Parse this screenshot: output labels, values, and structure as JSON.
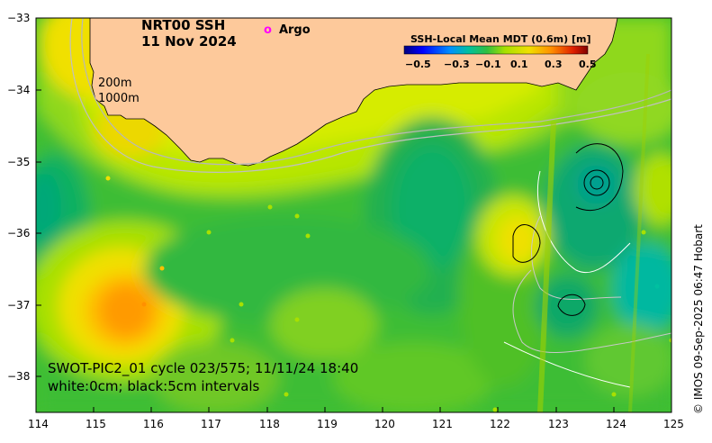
{
  "title": {
    "line1": "NRT00 SSH",
    "line2": "11 Nov 2024"
  },
  "legend": {
    "argo_symbol": "o",
    "argo_label": "Argo"
  },
  "contour_labels": {
    "depth1": "200m",
    "depth2": "1000m"
  },
  "colorbar": {
    "title": "SSH-Local Mean MDT (0.6m) [m]",
    "ticks": [
      "−0.5",
      "−0.3",
      "−0.1",
      "0.1",
      "0.3",
      "0.5"
    ],
    "range": [
      -0.5,
      0.5
    ],
    "colors": [
      "#00007f",
      "#0000ff",
      "#0080ff",
      "#00c0c0",
      "#00c08a",
      "#20c040",
      "#50d020",
      "#a8e000",
      "#e8e000",
      "#ffc000",
      "#ff8000",
      "#d02000",
      "#8b0000"
    ]
  },
  "axes": {
    "x_ticks": [
      "114",
      "115",
      "116",
      "117",
      "118",
      "119",
      "120",
      "121",
      "122",
      "123",
      "124",
      "125"
    ],
    "y_ticks": [
      "−33",
      "−34",
      "−35",
      "−36",
      "−37",
      "−38"
    ],
    "x_range": [
      114,
      125
    ],
    "y_range": [
      -38.5,
      -33
    ]
  },
  "footer": {
    "line1": "SWOT-PIC2_01 cycle 023/575; 11/11/24 18:40",
    "line2": "white:0cm; black:5cm intervals"
  },
  "credit": "© IMOS 09-Sep-2025 06:47 Hobart",
  "colors": {
    "land": "#fdc99b",
    "argo": "#ff00ff"
  }
}
